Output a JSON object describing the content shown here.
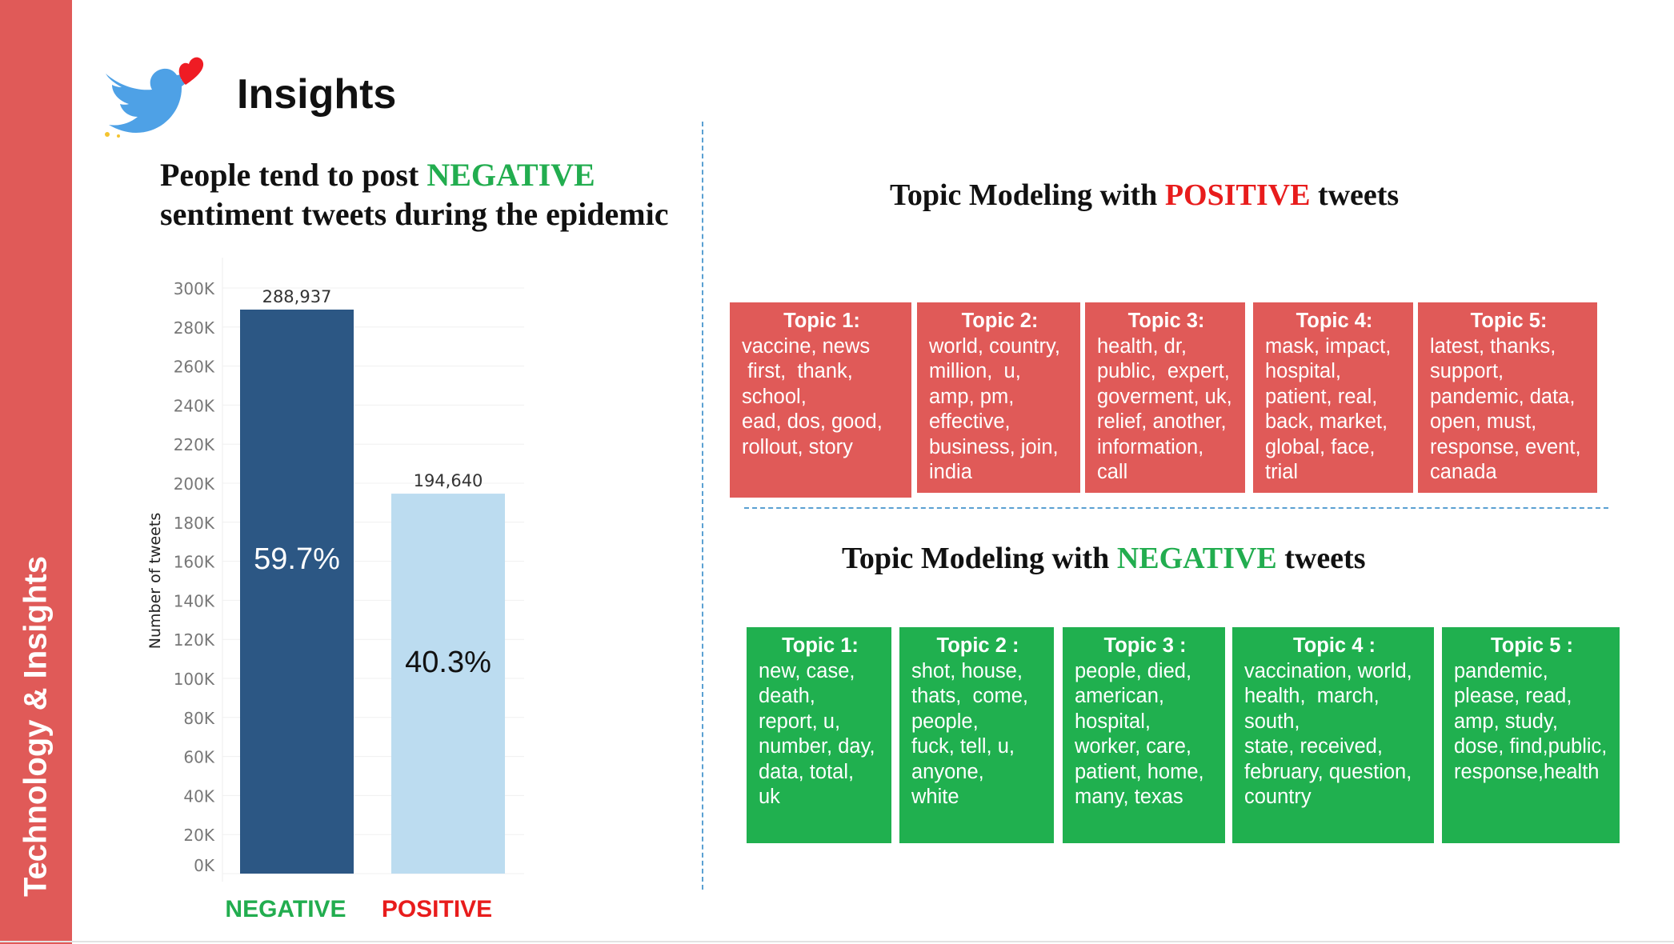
{
  "sidebar": {
    "title": "Technology & Insights"
  },
  "header": {
    "title": "Insights",
    "logo_icon": "twitter-bird-heart-icon"
  },
  "left_panel": {
    "headline_line1_prefix": "People tend to post ",
    "headline_highlight": "NEGATIVE",
    "headline_line2": "sentiment tweets during the epidemic"
  },
  "chart_data": {
    "type": "bar",
    "categories": [
      "NEGATIVE",
      "POSITIVE"
    ],
    "values": [
      288937,
      194640
    ],
    "value_labels": [
      "288,937",
      "194,640"
    ],
    "percent_labels": [
      "59.7%",
      "40.3%"
    ],
    "ylabel": "Number of tweets",
    "ylim": [
      0,
      300000
    ],
    "yticks": [
      0,
      20000,
      40000,
      60000,
      80000,
      100000,
      120000,
      140000,
      160000,
      180000,
      200000,
      220000,
      240000,
      260000,
      280000,
      300000
    ],
    "ytick_labels": [
      "0K",
      "20K",
      "40K",
      "60K",
      "80K",
      "100K",
      "120K",
      "140K",
      "160K",
      "180K",
      "200K",
      "220K",
      "240K",
      "260K",
      "280K",
      "300K"
    ],
    "bar_colors": [
      "#2c5784",
      "#bcdcf0"
    ],
    "percent_label_colors": [
      "#ffffff",
      "#111111"
    ],
    "category_colors": [
      "#22ad4f",
      "#e81c1c"
    ],
    "grid": true
  },
  "positive_section": {
    "title_prefix": "Topic Modeling with ",
    "title_highlight": "POSITIVE",
    "title_suffix": " tweets",
    "topics": [
      {
        "heading": "Topic 1:",
        "lines": [
          "vaccine, news",
          " first,  thank,",
          "school,",
          "ead, dos, good,",
          "rollout, story"
        ]
      },
      {
        "heading": "Topic 2:",
        "lines": [
          "world, country,",
          "million,  u,",
          "amp, pm,",
          "effective,",
          "business, join,",
          "india"
        ]
      },
      {
        "heading": "Topic 3:",
        "lines": [
          "health, dr,",
          "public,  expert,",
          "goverment, uk,",
          "relief, another,",
          "information,",
          "call"
        ]
      },
      {
        "heading": "Topic 4:",
        "lines": [
          "mask, impact,",
          "hospital,",
          "patient, real,",
          "back, market,",
          "global, face,",
          "trial"
        ]
      },
      {
        "heading": "Topic 5:",
        "lines": [
          "latest, thanks,",
          "support,",
          "pandemic, data,",
          "open, must,",
          "response, event,",
          "canada"
        ]
      }
    ]
  },
  "negative_section": {
    "title_prefix": "Topic Modeling with ",
    "title_highlight": "NEGATIVE",
    "title_suffix": " tweets",
    "topics": [
      {
        "heading": "Topic 1:",
        "lines": [
          "new, case,",
          "death,",
          "report, u,",
          "number, day,",
          "data, total,",
          "uk"
        ]
      },
      {
        "heading": "Topic 2 :",
        "lines": [
          "shot, house,",
          "thats,  come,",
          "people,",
          "fuck, tell, u,",
          "anyone,",
          "white"
        ]
      },
      {
        "heading": "Topic 3 :",
        "lines": [
          "people, died,",
          "american,",
          "hospital,",
          "worker, care,",
          "patient, home,",
          "many, texas"
        ]
      },
      {
        "heading": "Topic 4 :",
        "lines": [
          "vaccination, world,",
          "health,  march,",
          "south,",
          "state, received,",
          "february, question,",
          "country"
        ]
      },
      {
        "heading": "Topic 5 :",
        "lines": [
          "pandemic,",
          "please, read,",
          "amp, study,",
          "dose, find,public,",
          "response,health"
        ]
      }
    ]
  }
}
